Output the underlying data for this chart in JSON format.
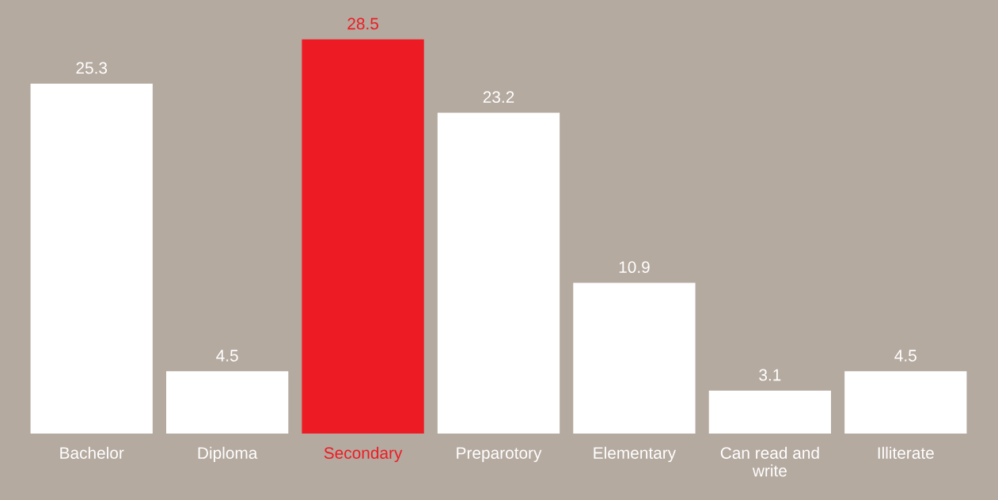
{
  "chart_data": {
    "type": "bar",
    "categories": [
      "Bachelor",
      "Diploma",
      "Secondary",
      "Preparotory",
      "Elementary",
      "Can read and\nwrite",
      "Illiterate"
    ],
    "values": [
      25.3,
      4.5,
      28.5,
      23.2,
      10.9,
      3.1,
      4.5
    ],
    "colors": [
      "#ffffff",
      "#ffffff",
      "#ed1c24",
      "#ffffff",
      "#ffffff",
      "#ffffff",
      "#ffffff"
    ],
    "data_labels": true,
    "grid": false,
    "legend": false
  }
}
